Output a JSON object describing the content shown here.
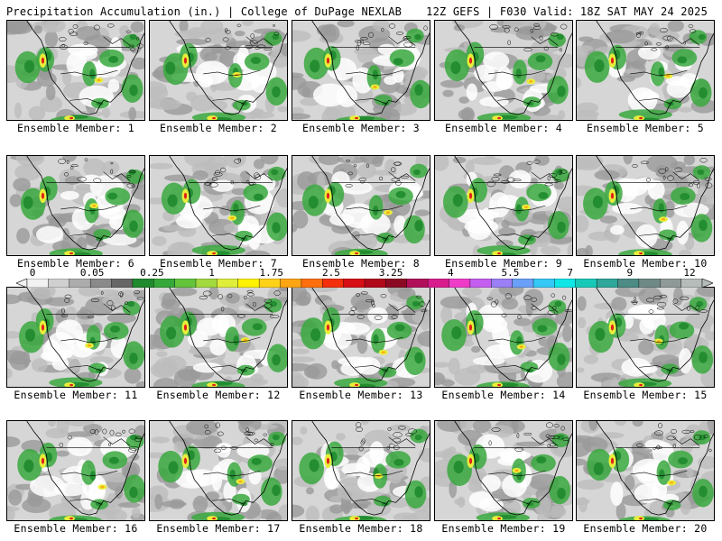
{
  "header": {
    "title_left": "Precipitation Accumulation (in.) | College of DuPage NEXLAB",
    "title_right": "12Z GEFS | F030 Valid: 18Z SAT MAY 24 2025"
  },
  "colorbar": {
    "labels": [
      "0",
      "0.05",
      "0.25",
      "1",
      "1.75",
      "2.5",
      "3.25",
      "4",
      "5.5",
      "7",
      "9",
      "12"
    ],
    "colors": [
      "#f2f2f2",
      "#d0d0d0",
      "#acacac",
      "#8a8a8a",
      "#666666",
      "#1f8a2e",
      "#36a83a",
      "#63c43c",
      "#a2d93f",
      "#dfee3a",
      "#fff200",
      "#ffd21a",
      "#ffa514",
      "#ff6f0d",
      "#f42f0b",
      "#d60f14",
      "#b00a1a",
      "#8a0a24",
      "#b0105a",
      "#d81e8e",
      "#ee3cc8",
      "#c45ff0",
      "#9b7ff4",
      "#6aa0f7",
      "#34c8f7",
      "#0fe6e6",
      "#19c9b8",
      "#2fa79a",
      "#4c8c84",
      "#6f8a86",
      "#8f9a98",
      "#b5bcba"
    ]
  },
  "panels": [
    {
      "member_label": "Ensemble Member: 1"
    },
    {
      "member_label": "Ensemble Member: 2"
    },
    {
      "member_label": "Ensemble Member: 3"
    },
    {
      "member_label": "Ensemble Member: 4"
    },
    {
      "member_label": "Ensemble Member: 5"
    },
    {
      "member_label": "Ensemble Member: 6"
    },
    {
      "member_label": "Ensemble Member: 7"
    },
    {
      "member_label": "Ensemble Member: 8"
    },
    {
      "member_label": "Ensemble Member: 9"
    },
    {
      "member_label": "Ensemble Member: 10"
    },
    {
      "member_label": "Ensemble Member: 11"
    },
    {
      "member_label": "Ensemble Member: 12"
    },
    {
      "member_label": "Ensemble Member: 13"
    },
    {
      "member_label": "Ensemble Member: 14"
    },
    {
      "member_label": "Ensemble Member: 15"
    },
    {
      "member_label": "Ensemble Member: 16"
    },
    {
      "member_label": "Ensemble Member: 17"
    },
    {
      "member_label": "Ensemble Member: 18"
    },
    {
      "member_label": "Ensemble Member: 19"
    },
    {
      "member_label": "Ensemble Member: 20"
    }
  ],
  "colors": {
    "background": "#ffffff",
    "land_gray": "#9a9a9a",
    "light_gray": "#d6d6d6",
    "green": "#3aa83e",
    "dark_green": "#1f8a2e",
    "yellow": "#e8ee3a",
    "orange": "#ffa514",
    "red": "#e0201a"
  }
}
